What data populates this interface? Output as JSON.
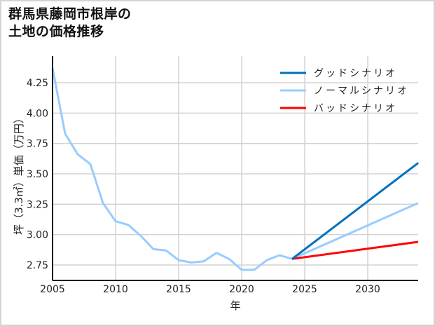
{
  "title_lines": [
    "群馬県藤岡市根岸の",
    "土地の価格推移"
  ],
  "chart_data": {
    "type": "line",
    "title": "群馬県藤岡市根岸の土地の価格推移",
    "xlabel": "年",
    "ylabel": "坪（3.3㎡）単価（万円）",
    "xlim": [
      2005,
      2034
    ],
    "ylim": [
      2.63,
      4.37
    ],
    "grid": true,
    "legend_position": "upper right",
    "x_ticks": [
      2005,
      2010,
      2015,
      2020,
      2025,
      2030
    ],
    "y_ticks": [
      "2.75",
      "3.00",
      "3.25",
      "3.50",
      "3.75",
      "4.00",
      "4.25"
    ],
    "historical": {
      "name": "ノーマルシナリオ",
      "color": "#99ccff",
      "x": [
        2005,
        2006,
        2007,
        2008,
        2009,
        2010,
        2011,
        2012,
        2013,
        2014,
        2015,
        2016,
        2017,
        2018,
        2019,
        2020,
        2021,
        2022,
        2023,
        2024
      ],
      "values": [
        4.37,
        3.83,
        3.66,
        3.58,
        3.26,
        3.11,
        3.08,
        2.99,
        2.88,
        2.87,
        2.79,
        2.77,
        2.78,
        2.85,
        2.8,
        2.71,
        2.71,
        2.79,
        2.83,
        2.8
      ]
    },
    "series": [
      {
        "name": "グッドシナリオ",
        "color": "#0070c0",
        "x": [
          2024,
          2034
        ],
        "values": [
          2.8,
          3.59
        ]
      },
      {
        "name": "ノーマルシナリオ",
        "color": "#99ccff",
        "x": [
          2024,
          2034
        ],
        "values": [
          2.8,
          3.26
        ]
      },
      {
        "name": "バッドシナリオ",
        "color": "#ff0000",
        "x": [
          2024,
          2034
        ],
        "values": [
          2.8,
          2.94
        ]
      }
    ]
  }
}
